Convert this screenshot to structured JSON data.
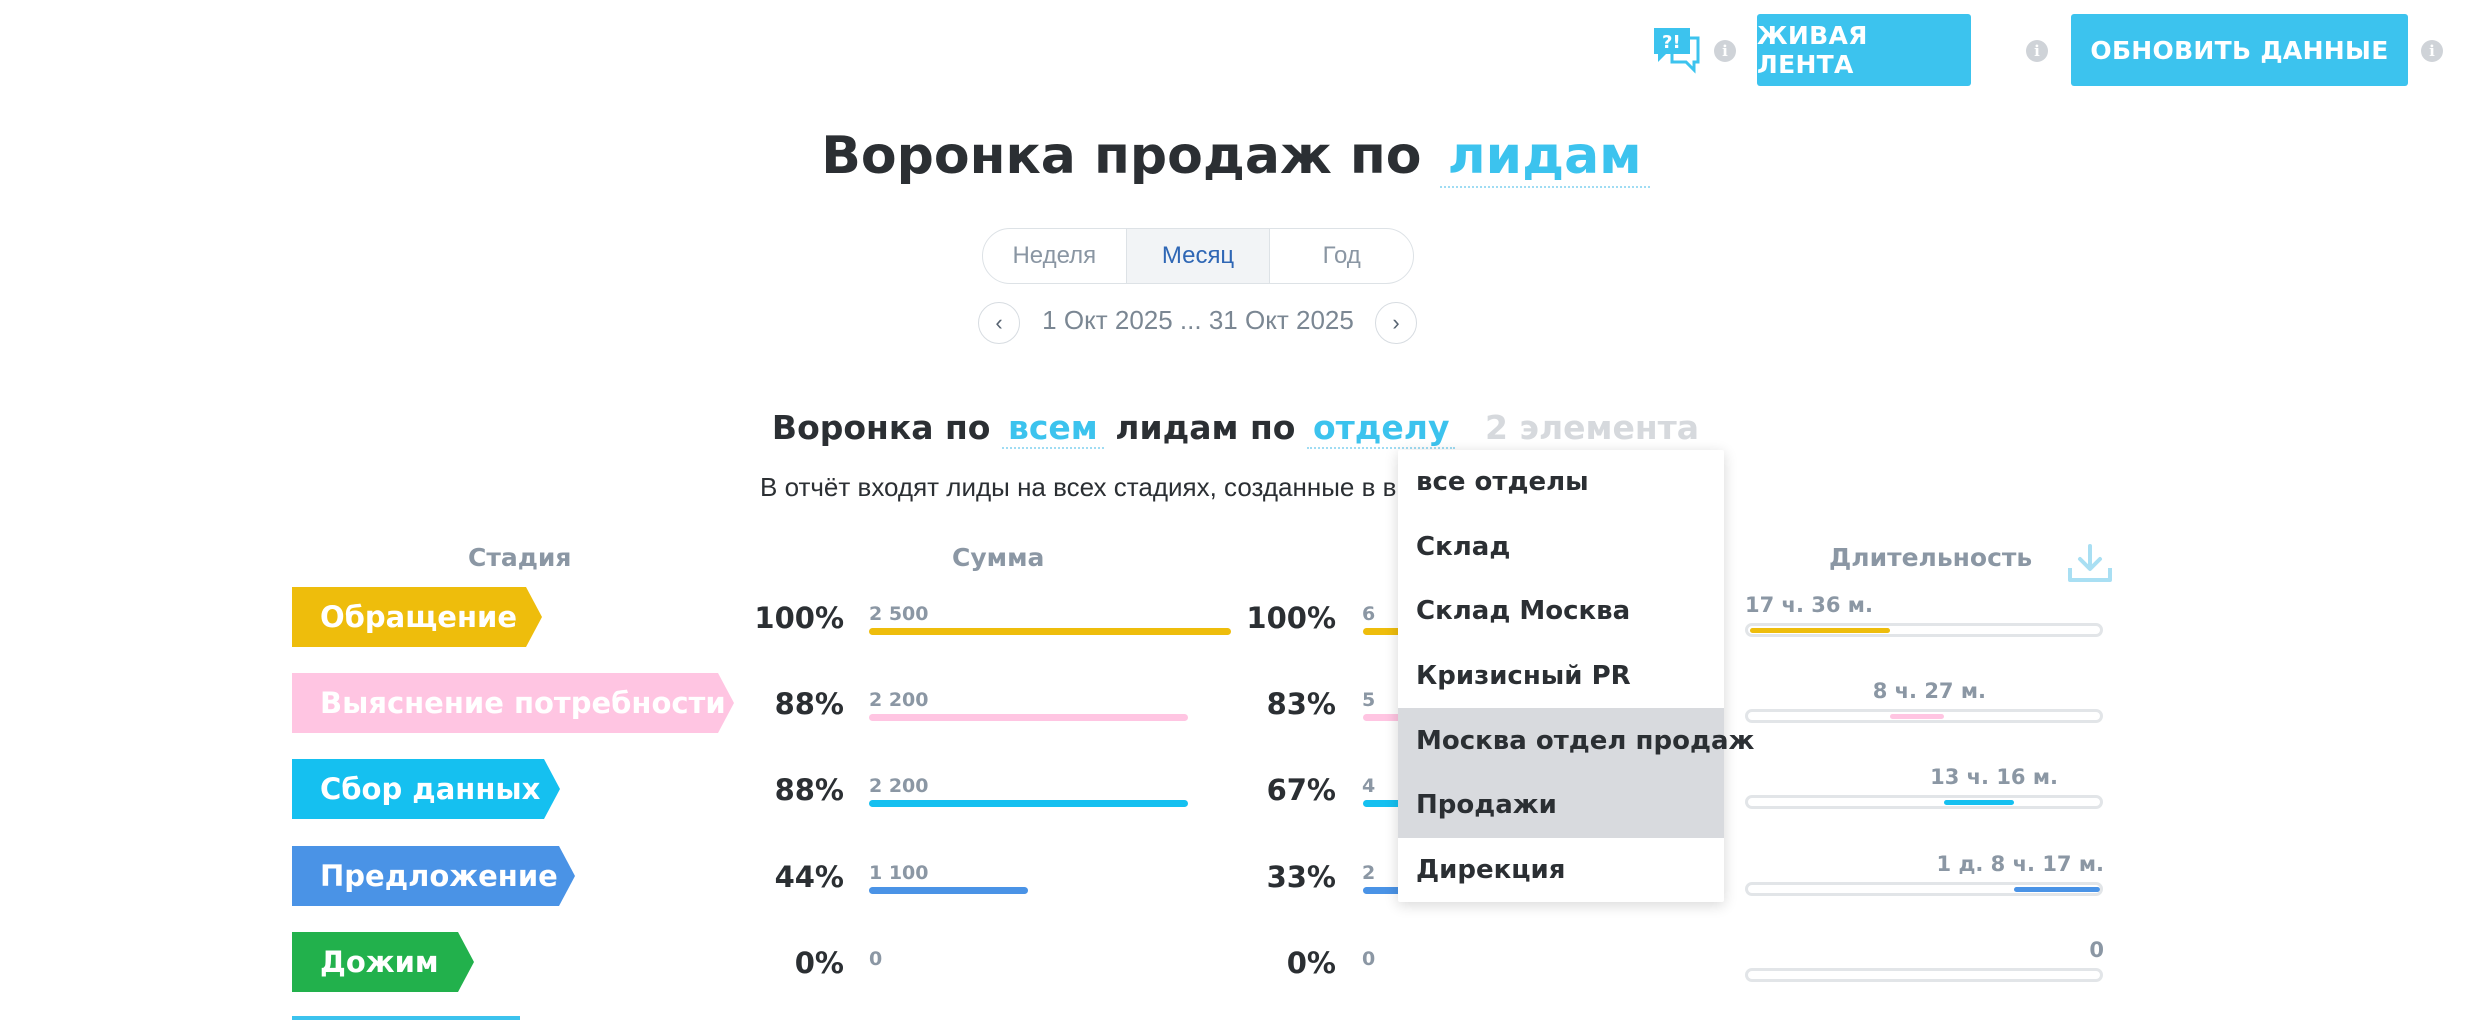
{
  "toolbar": {
    "live_feed_label": "ЖИВАЯ ЛЕНТА",
    "refresh_label": "ОБНОВИТЬ ДАННЫЕ",
    "info_glyph": "i",
    "help_icon": "question-chat-icon"
  },
  "header": {
    "title_prefix": "Воронка продаж по",
    "title_link": "лидам"
  },
  "period": {
    "tabs": [
      "Неделя",
      "Месяц",
      "Год"
    ],
    "active": "Месяц",
    "range": "1 Окт 2025 ... 31 Окт 2025",
    "prev_glyph": "‹",
    "next_glyph": "›"
  },
  "filter": {
    "part1": "Воронка по",
    "link1": "всем",
    "part2": "лидам по",
    "link2": "отделу",
    "count": "2 элемента"
  },
  "description": "В отчёт входят лиды на всех стадиях, созданные в в",
  "columns": {
    "stage": "Стадия",
    "sum": "Сумма",
    "duration": "Длительность"
  },
  "rows": [
    {
      "stage": "Обращение",
      "color": "#eebd0c",
      "sum_pct": "100%",
      "sum_value": "2 500",
      "sum_fraction": 1.0,
      "count_pct": "100%",
      "count_value": "6",
      "duration": "17 ч. 36 м."
    },
    {
      "stage": "Выяснение потребности",
      "color": "#ffc5e2",
      "sum_pct": "88%",
      "sum_value": "2 200",
      "sum_fraction": 0.88,
      "count_pct": "83%",
      "count_value": "5",
      "duration": "8 ч. 27 м."
    },
    {
      "stage": "Сбор данных",
      "color": "#15c0f0",
      "sum_pct": "88%",
      "sum_value": "2 200",
      "sum_fraction": 0.88,
      "count_pct": "67%",
      "count_value": "4",
      "duration": "13 ч. 16 м."
    },
    {
      "stage": "Предложение",
      "color": "#4a93e6",
      "sum_pct": "44%",
      "sum_value": "1 100",
      "sum_fraction": 0.44,
      "count_pct": "33%",
      "count_value": "2",
      "duration": "1 д. 8 ч. 17 м."
    },
    {
      "stage": "Дожим",
      "color": "#22b14c",
      "sum_pct": "0%",
      "sum_value": "0",
      "sum_fraction": 0.0,
      "count_pct": "0%",
      "count_value": "0",
      "duration": "0"
    }
  ],
  "dropdown": {
    "items": [
      "все отделы",
      "Склад",
      "Склад Москва",
      "Кризисный PR",
      "Москва отдел продаж",
      "Продажи",
      "Дирекция"
    ],
    "highlighted": [
      "Москва отдел продаж",
      "Продажи"
    ]
  }
}
